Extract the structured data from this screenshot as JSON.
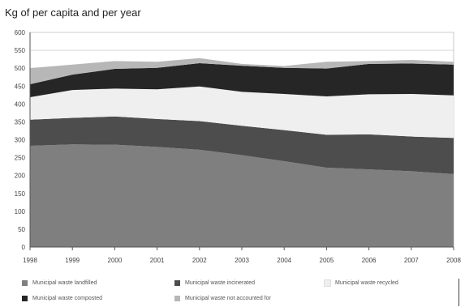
{
  "chart_data": {
    "type": "area",
    "title": "Kg of per capita and per year",
    "xlabel": "",
    "ylabel": "",
    "ylim": [
      0,
      600
    ],
    "yticks": [
      0,
      50,
      100,
      150,
      200,
      250,
      300,
      350,
      400,
      450,
      500,
      550,
      600
    ],
    "x": [
      "1998",
      "1999",
      "2000",
      "2001",
      "2002",
      "2003",
      "2004",
      "2005",
      "2006",
      "2007",
      "2008"
    ],
    "grid": true,
    "stacked": true,
    "legend_position": "bottom",
    "series": [
      {
        "name": "Municipal waste landfilled",
        "color": "#7f7f7f",
        "values": [
          283,
          287,
          286,
          280,
          272,
          257,
          240,
          222,
          217,
          212,
          204
        ]
      },
      {
        "name": "Municipal waste incinerated",
        "color": "#4d4d4d",
        "values": [
          73,
          74,
          79,
          78,
          80,
          82,
          87,
          92,
          98,
          97,
          101
        ]
      },
      {
        "name": "Municipal waste recycled",
        "color": "#efefef",
        "values": [
          63,
          78,
          78,
          83,
          97,
          95,
          101,
          107,
          112,
          119,
          119
        ]
      },
      {
        "name": "Municipal waste composted",
        "color": "#262626",
        "values": [
          36,
          43,
          55,
          60,
          65,
          73,
          73,
          78,
          85,
          85,
          86
        ]
      },
      {
        "name": "Municipal waste not accounted for",
        "color": "#b7b7b7",
        "values": [
          45,
          28,
          22,
          17,
          14,
          5,
          5,
          19,
          8,
          10,
          8
        ]
      }
    ]
  }
}
